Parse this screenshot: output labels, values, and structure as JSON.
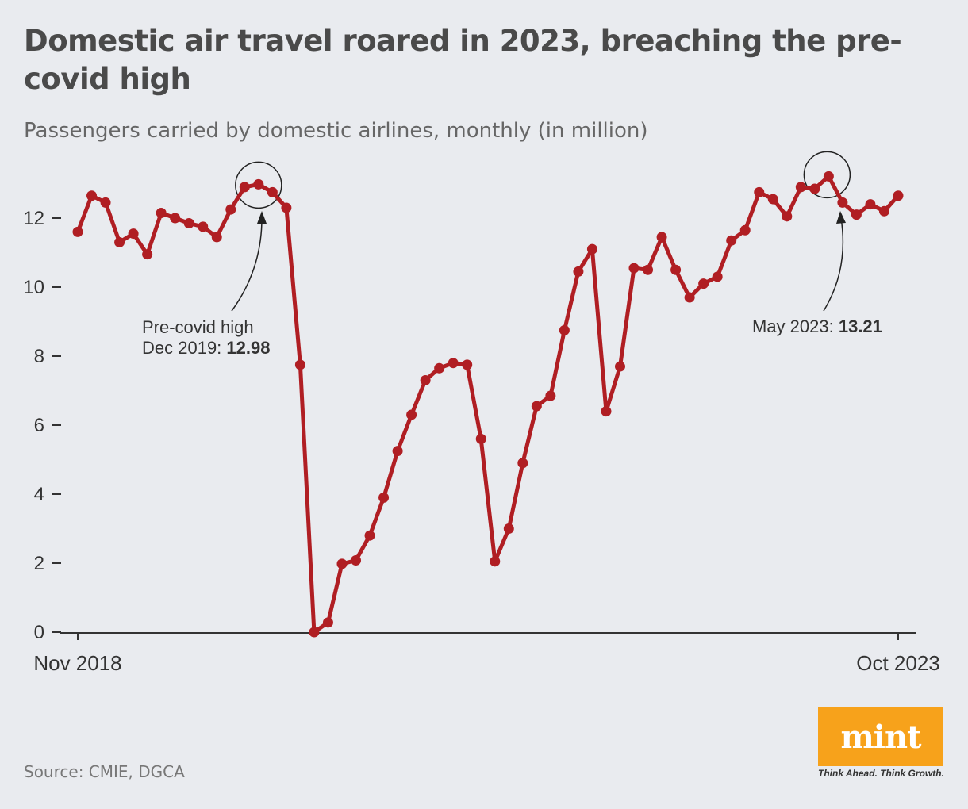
{
  "header": {
    "title": "Domestic air travel roared in 2023, breaching the pre-covid high",
    "subtitle": "Passengers carried by domestic airlines, monthly (in million)"
  },
  "chart_data": {
    "type": "line",
    "title": "Domestic air travel roared in 2023, breaching the pre-covid high",
    "subtitle": "Passengers carried by domestic airlines, monthly (in million)",
    "xlabel": "",
    "ylabel": "",
    "x_start": "Nov 2018",
    "x_end": "Oct 2023",
    "x_tick_labels": [
      "Nov 2018",
      "Oct 2023"
    ],
    "ylim": [
      0,
      13.5
    ],
    "y_ticks": [
      0,
      2,
      4,
      6,
      8,
      10,
      12
    ],
    "grid": false,
    "line_color": "#b01e23",
    "series": [
      {
        "name": "",
        "values": [
          11.6,
          12.65,
          12.45,
          11.3,
          11.55,
          10.95,
          12.15,
          12.0,
          11.85,
          11.75,
          11.45,
          12.25,
          12.9,
          12.98,
          12.75,
          12.3,
          7.75,
          0.0,
          0.28,
          1.98,
          2.08,
          2.8,
          3.9,
          5.25,
          6.3,
          7.3,
          7.65,
          7.8,
          7.75,
          5.6,
          2.05,
          3.0,
          4.9,
          6.55,
          6.85,
          8.75,
          10.45,
          11.1,
          6.4,
          7.7,
          10.55,
          10.5,
          11.45,
          10.5,
          9.7,
          10.1,
          10.3,
          11.35,
          11.65,
          12.75,
          12.55,
          12.05,
          12.9,
          12.85,
          13.21,
          12.45,
          12.1,
          12.4,
          12.2,
          12.65
        ]
      }
    ],
    "annotations": [
      {
        "label": "Pre-covid high",
        "date_label": "Dec 2019: ",
        "value_label": "12.98",
        "index": 13,
        "value": 12.98
      },
      {
        "label": "",
        "date_label": "May 2023: ",
        "value_label": "13.21",
        "index": 54,
        "value": 13.21
      }
    ]
  },
  "footer": {
    "source": "Source: CMIE, DGCA",
    "logo_text": "mint",
    "tagline": "Think Ahead. Think Growth.",
    "logo_color": "#f7a21b"
  }
}
